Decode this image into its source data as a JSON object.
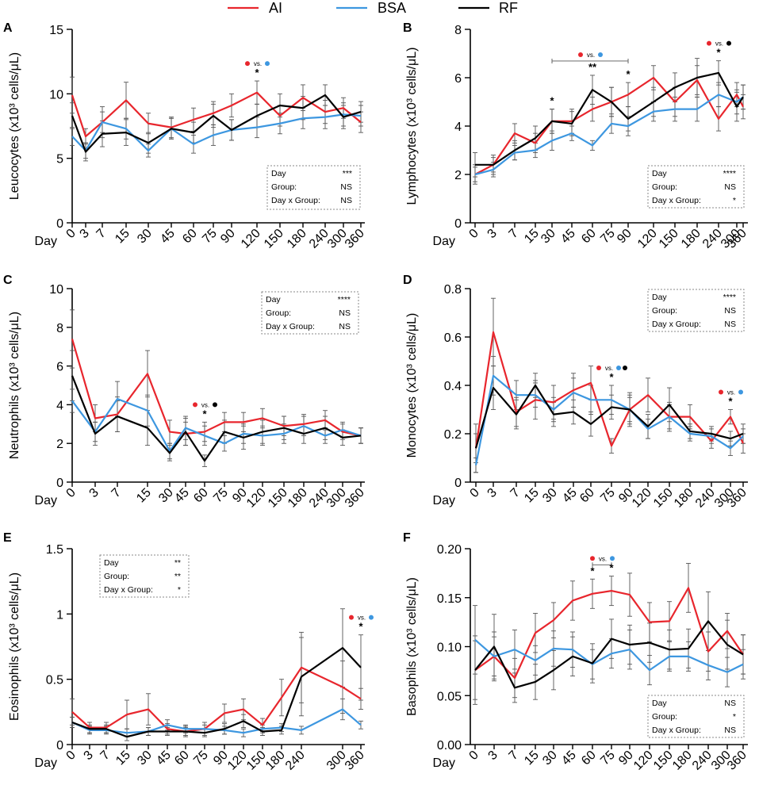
{
  "legend": {
    "items": [
      {
        "label": "AI",
        "color": "#e8262d"
      },
      {
        "label": "BSA",
        "color": "#3d97e0"
      },
      {
        "label": "RF",
        "color": "#000000"
      }
    ]
  },
  "colors": {
    "AI": "#e8262d",
    "BSA": "#3d97e0",
    "RF": "#000000",
    "axis": "#000000",
    "box": "#8a8a8a"
  },
  "day_label": "Day",
  "chart_data": [
    {
      "type": "line",
      "panel": "A",
      "ylabel": "Leucocytes (x10³ cells/μL)",
      "ylim": [
        0,
        15
      ],
      "yticks": [
        0,
        5,
        10,
        15
      ],
      "categories": [
        "0",
        "3",
        "7",
        "15",
        "30",
        "45",
        "60",
        "75",
        "90",
        "120",
        "150",
        "180",
        "240",
        "300",
        "360"
      ],
      "series": [
        {
          "name": "AI",
          "values": [
            9.9,
            6.7,
            7.8,
            9.5,
            7.7,
            7.4,
            8.0,
            8.5,
            9.1,
            10.1,
            8.3,
            9.7,
            8.6,
            8.9,
            7.8
          ],
          "errors": [
            1.4,
            0.6,
            1.2,
            1.4,
            0.8,
            0.8,
            0.9,
            0.9,
            0.9,
            0.9,
            0.8,
            1.0,
            0.9,
            0.8,
            0.8
          ]
        },
        {
          "name": "BSA",
          "values": [
            6.7,
            5.6,
            7.8,
            7.3,
            5.6,
            7.3,
            6.1,
            6.8,
            7.2,
            7.4,
            7.7,
            8.1,
            8.2,
            8.4,
            8.3
          ],
          "errors": [
            0.7,
            0.6,
            0.8,
            0.8,
            0.5,
            0.8,
            0.7,
            0.8,
            0.8,
            0.8,
            0.8,
            0.8,
            0.9,
            0.9,
            0.8
          ]
        },
        {
          "name": "RF",
          "values": [
            8.3,
            5.5,
            6.9,
            7.0,
            6.2,
            7.3,
            7.0,
            8.3,
            7.2,
            8.3,
            9.1,
            8.9,
            9.9,
            8.2,
            8.6
          ],
          "errors": [
            1.0,
            0.7,
            1.0,
            1.0,
            0.8,
            0.8,
            0.8,
            0.9,
            0.8,
            0.9,
            0.9,
            0.9,
            0.8,
            0.9,
            0.8
          ]
        }
      ],
      "stats": [
        {
          "label": "Day",
          "value": "***"
        },
        {
          "label": "Group:",
          "value": "NS"
        },
        {
          "label": "Day x Group:",
          "value": "NS"
        }
      ],
      "annotations": [
        {
          "category": "120",
          "star": "*",
          "vs": "vs.",
          "dots": [
            "AI",
            "BSA"
          ]
        }
      ]
    },
    {
      "type": "line",
      "panel": "B",
      "ylabel": "Lymphocytes (x10³ cells/μL)",
      "ylim": [
        0,
        8
      ],
      "yticks": [
        0,
        2,
        4,
        6,
        8
      ],
      "categories": [
        "0",
        "3",
        "7",
        "15",
        "30",
        "45",
        "60",
        "75",
        "90",
        "120",
        "150",
        "180",
        "240",
        "300",
        "360"
      ],
      "series": [
        {
          "name": "AI",
          "values": [
            2.0,
            2.4,
            3.7,
            3.3,
            4.2,
            4.2,
            4.7,
            5.0,
            5.3,
            6.0,
            5.0,
            5.9,
            4.3,
            5.3,
            4.8
          ],
          "errors": [
            0.4,
            0.3,
            0.4,
            0.4,
            0.5,
            0.5,
            0.5,
            0.6,
            0.5,
            0.5,
            0.6,
            0.6,
            0.5,
            0.5,
            0.5
          ]
        },
        {
          "name": "BSA",
          "values": [
            2.0,
            2.2,
            2.9,
            3.0,
            3.4,
            3.7,
            3.2,
            4.1,
            4.0,
            4.6,
            4.7,
            4.7,
            5.3,
            5.0,
            5.2
          ],
          "errors": [
            0.3,
            0.3,
            0.3,
            0.3,
            0.4,
            0.3,
            0.2,
            0.4,
            0.4,
            0.4,
            0.5,
            0.5,
            0.5,
            0.5,
            0.5
          ]
        },
        {
          "name": "RF",
          "values": [
            2.4,
            2.4,
            3.0,
            3.5,
            4.2,
            4.1,
            5.5,
            5.0,
            4.3,
            5.0,
            5.6,
            6.0,
            6.2,
            4.8,
            5.2
          ],
          "errors": [
            0.5,
            0.4,
            0.4,
            0.5,
            0.5,
            0.5,
            0.6,
            0.6,
            0.5,
            0.6,
            0.6,
            0.8,
            0.5,
            0.6,
            0.5
          ]
        }
      ],
      "stats": [
        {
          "label": "Day",
          "value": "****"
        },
        {
          "label": "Group:",
          "value": "NS"
        },
        {
          "label": "Day x Group:",
          "value": "*"
        }
      ],
      "annotations": [
        {
          "category": "30",
          "star": "*"
        },
        {
          "category": "60",
          "star": "**",
          "bracket_from": "30",
          "bracket_to": "90",
          "vs": "vs.",
          "dots": [
            "AI",
            "BSA"
          ]
        },
        {
          "category": "90",
          "star": "*"
        },
        {
          "category": "240",
          "star": "*",
          "vs": "vs.",
          "dots": [
            "AI",
            "RF"
          ]
        }
      ]
    },
    {
      "type": "line",
      "panel": "C",
      "ylabel": "Neutrophils  (x10³ cells/μL)",
      "ylim": [
        0,
        10
      ],
      "yticks": [
        0,
        2,
        4,
        6,
        8,
        10
      ],
      "categories": [
        "0",
        "3",
        "7",
        "15",
        "30",
        "45",
        "60",
        "75",
        "90",
        "120",
        "150",
        "180",
        "240",
        "300",
        "360"
      ],
      "series": [
        {
          "name": "AI",
          "values": [
            7.4,
            3.3,
            3.5,
            5.6,
            2.6,
            2.5,
            2.6,
            3.1,
            3.1,
            3.3,
            2.9,
            3.0,
            3.2,
            2.6,
            2.4
          ],
          "errors": [
            1.5,
            0.7,
            0.9,
            1.2,
            0.6,
            0.6,
            0.5,
            0.5,
            0.5,
            0.5,
            0.5,
            0.5,
            0.5,
            0.4,
            0.4
          ]
        },
        {
          "name": "BSA",
          "values": [
            4.2,
            2.6,
            4.3,
            3.7,
            1.6,
            2.8,
            2.4,
            2.0,
            2.5,
            2.4,
            2.5,
            2.9,
            2.4,
            2.7,
            2.4
          ],
          "errors": [
            0.6,
            0.5,
            0.9,
            0.8,
            0.4,
            0.6,
            0.5,
            0.4,
            0.5,
            0.5,
            0.5,
            0.5,
            0.4,
            0.4,
            0.4
          ]
        },
        {
          "name": "RF",
          "values": [
            5.5,
            2.5,
            3.4,
            2.8,
            1.5,
            2.6,
            1.1,
            2.6,
            2.3,
            2.6,
            2.8,
            2.5,
            2.8,
            2.3,
            2.4
          ],
          "errors": [
            1.3,
            0.6,
            0.8,
            0.9,
            0.4,
            0.7,
            0.3,
            0.6,
            0.6,
            0.6,
            0.6,
            0.5,
            0.6,
            0.4,
            0.4
          ]
        }
      ],
      "stats": [
        {
          "label": "Day",
          "value": "****"
        },
        {
          "label": "Group:",
          "value": "NS"
        },
        {
          "label": "Day x Group:",
          "value": "NS"
        }
      ],
      "annotations": [
        {
          "category": "60",
          "star": "*",
          "vs": "vs.",
          "dots": [
            "AI",
            "RF"
          ]
        }
      ]
    },
    {
      "type": "line",
      "panel": "D",
      "ylabel": "Monocytes (x10³ cells/μL)",
      "ylim": [
        0,
        0.8
      ],
      "yticks": [
        0,
        0.2,
        0.4,
        0.6,
        0.8
      ],
      "categories": [
        "0",
        "3",
        "7",
        "15",
        "30",
        "45",
        "60",
        "75",
        "90",
        "120",
        "150",
        "180",
        "240",
        "300",
        "360"
      ],
      "series": [
        {
          "name": "AI",
          "values": [
            0.14,
            0.62,
            0.29,
            0.34,
            0.33,
            0.38,
            0.41,
            0.15,
            0.3,
            0.36,
            0.27,
            0.27,
            0.17,
            0.27,
            0.16
          ],
          "errors": [
            0.1,
            0.14,
            0.06,
            0.08,
            0.07,
            0.07,
            0.07,
            0.03,
            0.06,
            0.07,
            0.06,
            0.05,
            0.03,
            0.03,
            0.04
          ]
        },
        {
          "name": "BSA",
          "values": [
            0.07,
            0.44,
            0.36,
            0.36,
            0.3,
            0.37,
            0.34,
            0.34,
            0.3,
            0.22,
            0.27,
            0.2,
            0.19,
            0.14,
            0.19
          ],
          "errors": [
            0.03,
            0.08,
            0.06,
            0.05,
            0.05,
            0.06,
            0.06,
            0.06,
            0.05,
            0.04,
            0.05,
            0.03,
            0.03,
            0.03,
            0.03
          ]
        },
        {
          "name": "RF",
          "values": [
            0.14,
            0.39,
            0.28,
            0.4,
            0.28,
            0.29,
            0.24,
            0.31,
            0.3,
            0.23,
            0.32,
            0.21,
            0.2,
            0.18,
            0.2
          ],
          "errors": [
            0.06,
            0.09,
            0.06,
            0.05,
            0.05,
            0.05,
            0.05,
            0.05,
            0.07,
            0.05,
            0.07,
            0.03,
            0.03,
            0.03,
            0.04
          ]
        }
      ],
      "stats": [
        {
          "label": "Day",
          "value": "****"
        },
        {
          "label": "Group:",
          "value": "NS"
        },
        {
          "label": "Day x Group:",
          "value": "NS"
        }
      ],
      "annotations": [
        {
          "category": "75",
          "star": "*",
          "vs": "vs.",
          "dots": [
            "AI",
            "BSA",
            "RF"
          ]
        },
        {
          "category": "300",
          "star": "*",
          "vs": "vs.",
          "dots": [
            "AI",
            "BSA"
          ]
        }
      ]
    },
    {
      "type": "line",
      "panel": "E",
      "ylabel": "Eosinophils (x10³ cells/μL)",
      "ylim": [
        0,
        1.5
      ],
      "yticks": [
        0,
        0.5,
        1.0,
        1.5
      ],
      "categories": [
        "0",
        "3",
        "7",
        "15",
        "30",
        "45",
        "60",
        "75",
        "90",
        "120",
        "150",
        "180",
        "240",
        "300",
        "360"
      ],
      "series": [
        {
          "name": "AI",
          "values": [
            0.25,
            0.13,
            0.13,
            0.23,
            0.27,
            0.12,
            0.1,
            0.12,
            0.24,
            0.27,
            0.15,
            0.36,
            0.59,
            0.44,
            0.35
          ],
          "errors": [
            0.1,
            0.04,
            0.04,
            0.11,
            0.12,
            0.04,
            0.04,
            0.05,
            0.07,
            0.08,
            0.05,
            0.14,
            0.27,
            0.2,
            0.08
          ]
        },
        {
          "name": "BSA",
          "values": [
            0.17,
            0.11,
            0.11,
            0.09,
            0.1,
            0.15,
            0.12,
            0.12,
            0.11,
            0.09,
            0.12,
            0.13,
            0.11,
            0.27,
            0.15
          ],
          "errors": [
            0.04,
            0.03,
            0.03,
            0.03,
            0.03,
            0.04,
            0.03,
            0.03,
            0.03,
            0.03,
            0.03,
            0.03,
            0.03,
            0.08,
            0.03
          ]
        },
        {
          "name": "RF",
          "values": [
            0.17,
            0.12,
            0.12,
            0.06,
            0.1,
            0.1,
            0.1,
            0.09,
            0.12,
            0.18,
            0.1,
            0.11,
            0.52,
            0.74,
            0.59
          ],
          "errors": [
            0.04,
            0.03,
            0.03,
            0.03,
            0.03,
            0.03,
            0.03,
            0.03,
            0.04,
            0.05,
            0.03,
            0.03,
            0.3,
            0.3,
            0.25
          ]
        }
      ],
      "stats": [
        {
          "label": "Day",
          "value": "**"
        },
        {
          "label": "Group:",
          "value": "**"
        },
        {
          "label": "Day x Group:",
          "value": "*"
        }
      ],
      "annotations": [
        {
          "category": "360",
          "star": "*",
          "vs": "vs.",
          "dots": [
            "AI",
            "BSA"
          ]
        }
      ]
    },
    {
      "type": "line",
      "panel": "F",
      "ylabel": "Basophils (x10³ cells/μL)",
      "ylim": [
        0,
        0.2
      ],
      "yticks": [
        "0.00",
        "0.05",
        "0.10",
        "0.15",
        "0.20"
      ],
      "categories": [
        "0",
        "3",
        "7",
        "15",
        "30",
        "45",
        "60",
        "75",
        "90",
        "120",
        "150",
        "180",
        "240",
        "300",
        "360"
      ],
      "series": [
        {
          "name": "AI",
          "values": [
            0.076,
            0.09,
            0.068,
            0.114,
            0.127,
            0.147,
            0.154,
            0.157,
            0.153,
            0.125,
            0.126,
            0.16,
            0.095,
            0.116,
            0.092
          ],
          "errors": [
            0.03,
            0.025,
            0.02,
            0.02,
            0.018,
            0.02,
            0.015,
            0.015,
            0.022,
            0.02,
            0.02,
            0.025,
            0.02,
            0.018,
            0.02
          ]
        },
        {
          "name": "BSA",
          "values": [
            0.107,
            0.09,
            0.097,
            0.086,
            0.098,
            0.097,
            0.082,
            0.093,
            0.097,
            0.076,
            0.09,
            0.09,
            0.081,
            0.074,
            0.082
          ],
          "errors": [
            0.035,
            0.02,
            0.02,
            0.015,
            0.018,
            0.018,
            0.015,
            0.015,
            0.02,
            0.015,
            0.015,
            0.015,
            0.015,
            0.015,
            0.015
          ]
        },
        {
          "name": "RF",
          "values": [
            0.076,
            0.1,
            0.058,
            0.064,
            0.076,
            0.09,
            0.083,
            0.108,
            0.102,
            0.104,
            0.097,
            0.098,
            0.126,
            0.102,
            0.092
          ],
          "errors": [
            0.035,
            0.033,
            0.015,
            0.018,
            0.02,
            0.02,
            0.02,
            0.02,
            0.02,
            0.02,
            0.02,
            0.02,
            0.03,
            0.025,
            0.02
          ]
        }
      ],
      "stats": [
        {
          "label": "Day",
          "value": "NS"
        },
        {
          "label": "Group:",
          "value": "*"
        },
        {
          "label": "Day x Group:",
          "value": "NS"
        }
      ],
      "annotations": [
        {
          "category": "60",
          "star": "*",
          "bracket_from": "60",
          "bracket_to": "75",
          "vs": "vs.",
          "dots": [
            "AI",
            "BSA"
          ]
        },
        {
          "category": "75",
          "star": "*"
        }
      ]
    }
  ]
}
